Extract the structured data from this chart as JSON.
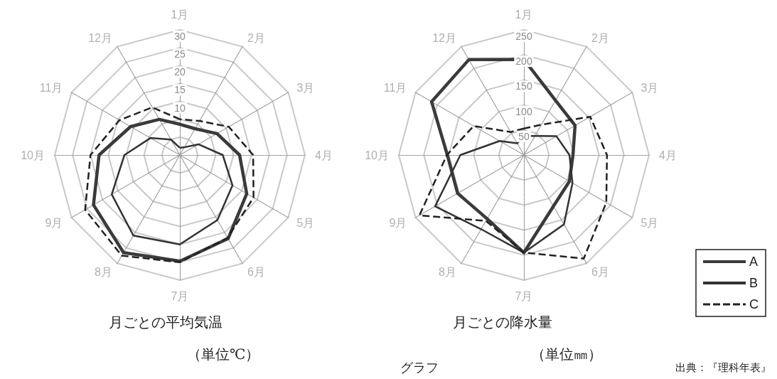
{
  "chart_data": [
    {
      "type": "radar",
      "title": "月ごとの平均気温",
      "subtitle": "（単位℃）",
      "categories": [
        "1月",
        "2月",
        "3月",
        "4月",
        "5月",
        "6月",
        "7月",
        "8月",
        "9月",
        "10月",
        "11月",
        "12月"
      ],
      "ylim": [
        -5,
        30
      ],
      "yticks": [
        10,
        15,
        20,
        25,
        30
      ],
      "grid": true,
      "marker": "none",
      "series": [
        {
          "color": "#3a3a3a",
          "line_style": "solid",
          "values": [
            3.6,
            3.5,
            7,
            11.7,
            16.6,
            22,
            24.7,
            26.5,
            22.9,
            17.6,
            10.9,
            6.5
          ]
        },
        {
          "color": "#333333",
          "line_style": "solid",
          "values": [
            -3,
            -2.5,
            1,
            7,
            12,
            16,
            20,
            21,
            17,
            10.5,
            4.5,
            0
          ]
        },
        {
          "color": "#222222",
          "line_style": "dashed",
          "values": [
            5,
            6,
            10.8,
            15.5,
            18.8,
            21.7,
            25,
            27.5,
            25.6,
            20,
            14.5,
            10.4
          ]
        }
      ]
    },
    {
      "type": "radar",
      "title": "月ごとの降水量",
      "subtitle": "（単位㎜）",
      "categories": [
        "1月",
        "2月",
        "3月",
        "4月",
        "5月",
        "6月",
        "7月",
        "8月",
        "9月",
        "10月",
        "11月",
        "12月"
      ],
      "ylim": [
        0,
        250
      ],
      "yticks": [
        50,
        100,
        150,
        200,
        250
      ],
      "grid": true,
      "marker": "none",
      "legend": "bottom right",
      "annotations": [
        "グラフ",
        "出典：『理科年表』"
      ],
      "series": [
        {
          "name": "A",
          "color": "#3a3a3a",
          "line_style": "solid",
          "values": [
            191,
            126,
            118,
            98,
            105,
            118,
            195,
            147,
            153,
            153,
            213,
            220
          ]
        },
        {
          "name": "B",
          "color": "#333333",
          "line_style": "solid",
          "values": [
            38,
            44,
            75,
            91,
            112,
            160,
            195,
            171,
            205,
            127,
            56,
            27
          ]
        },
        {
          "name": "C",
          "color": "#222222",
          "line_style": "dashed",
          "values": [
            53,
            70,
            153,
            166,
            190,
            239,
            195,
            152,
            241,
            154,
            116,
            53
          ]
        }
      ]
    }
  ]
}
